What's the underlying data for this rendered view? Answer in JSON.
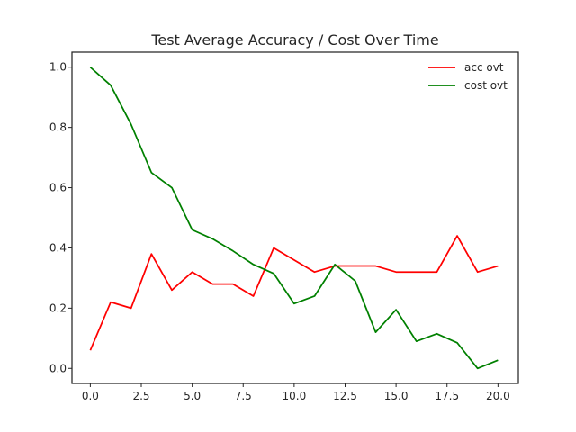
{
  "chart_data": {
    "type": "line",
    "title": "Test Average Accuracy / Cost Over Time",
    "xlabel": "",
    "ylabel": "",
    "xlim": [
      -0.9,
      21
    ],
    "ylim": [
      -0.05,
      1.05
    ],
    "xticks": [
      0,
      2.5,
      5,
      7.5,
      10,
      12.5,
      15,
      17.5,
      20
    ],
    "xtick_labels": [
      "0.0",
      "2.5",
      "5.0",
      "7.5",
      "10.0",
      "12.5",
      "15.0",
      "17.5",
      "20.0"
    ],
    "yticks": [
      0,
      0.2,
      0.4,
      0.6,
      0.8,
      1.0
    ],
    "ytick_labels": [
      "0.0",
      "0.2",
      "0.4",
      "0.6",
      "0.8",
      "1.0"
    ],
    "grid": false,
    "legend_position": "top-right",
    "x": [
      0,
      1,
      2,
      3,
      4,
      5,
      6,
      7,
      8,
      9,
      10,
      11,
      12,
      13,
      14,
      15,
      16,
      17,
      18,
      19,
      20
    ],
    "series": [
      {
        "name": "acc ovt",
        "color": "#ff0000",
        "values": [
          0.06,
          0.22,
          0.2,
          0.38,
          0.26,
          0.32,
          0.28,
          0.28,
          0.24,
          0.4,
          0.36,
          0.32,
          0.34,
          0.34,
          0.34,
          0.32,
          0.32,
          0.32,
          0.44,
          0.32,
          0.34
        ]
      },
      {
        "name": "cost ovt",
        "color": "#008000",
        "values": [
          1.0,
          0.94,
          0.81,
          0.65,
          0.6,
          0.46,
          0.43,
          0.39,
          0.345,
          0.315,
          0.215,
          0.24,
          0.345,
          0.29,
          0.12,
          0.195,
          0.09,
          0.115,
          0.085,
          0.0,
          0.027
        ]
      }
    ]
  }
}
